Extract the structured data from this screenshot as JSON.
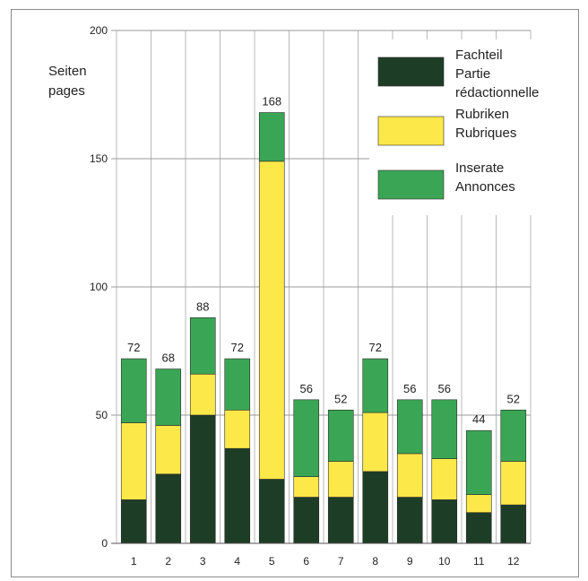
{
  "chart_data": {
    "type": "bar",
    "stacked": true,
    "ylabel": [
      "Seiten",
      "pages"
    ],
    "ylim": [
      0,
      200
    ],
    "yticks": [
      0,
      50,
      100,
      150,
      200
    ],
    "categories": [
      "1",
      "2",
      "3",
      "4",
      "5",
      "6",
      "7",
      "8",
      "9",
      "10",
      "11",
      "12"
    ],
    "series": [
      {
        "name": "Fachteil / Partie rédactionnelle",
        "legend_lines": [
          "Fachteil",
          "Partie",
          "rédactionnelle"
        ],
        "color": "#1e3d26",
        "values": [
          17,
          27,
          50,
          37,
          25,
          18,
          18,
          28,
          18,
          17,
          12,
          15
        ]
      },
      {
        "name": "Rubriken / Rubriques",
        "legend_lines": [
          "Rubriken",
          "Rubriques"
        ],
        "color": "#fde84a",
        "values": [
          30,
          19,
          16,
          15,
          124,
          8,
          14,
          23,
          17,
          16,
          7,
          17
        ]
      },
      {
        "name": "Inserate / Annonces",
        "legend_lines": [
          "Inserate",
          "Annonces"
        ],
        "color": "#3aa655",
        "values": [
          25,
          22,
          22,
          20,
          19,
          30,
          20,
          21,
          21,
          23,
          25,
          20
        ]
      }
    ],
    "totals": [
      72,
      68,
      88,
      72,
      168,
      56,
      52,
      72,
      56,
      56,
      44,
      52
    ],
    "grid": true,
    "legend": "top-right"
  }
}
